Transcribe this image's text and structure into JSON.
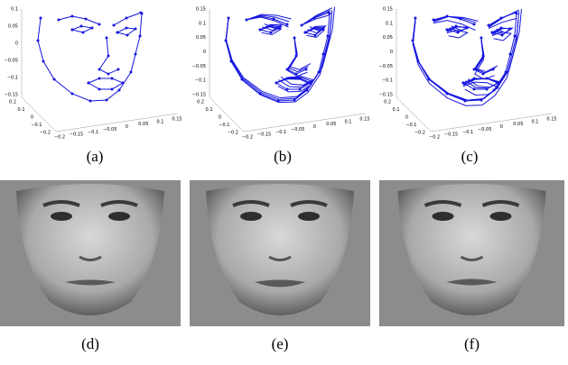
{
  "panels": [
    {
      "label": "(a)",
      "z_ticks": [
        "0.1",
        "0.05",
        "0",
        "−0.05",
        "−0.1",
        "−0.15"
      ],
      "y_ticks": [
        "0.2",
        "0.1",
        "0",
        "−0.1",
        "−0.2"
      ],
      "x_ticks": [
        "−0.2",
        "−0.15",
        "−0.1",
        "−0.05",
        "0",
        "0.05",
        "0.1",
        "0.15"
      ]
    },
    {
      "label": "(b)",
      "z_ticks": [
        "0.15",
        "0.1",
        "0.05",
        "0",
        "−0.05",
        "−0.1",
        "−0.15"
      ],
      "y_ticks": [
        "0.2",
        "0.1",
        "0",
        "−0.1",
        "−0.2"
      ],
      "x_ticks": [
        "−0.2",
        "−0.15",
        "−0.1",
        "−0.05",
        "0",
        "0.05",
        "0.1",
        "0.15"
      ]
    },
    {
      "label": "(c)",
      "z_ticks": [
        "0.15",
        "0.1",
        "0.05",
        "0",
        "−0.05",
        "−0.1",
        "−0.15"
      ],
      "y_ticks": [
        "0.2",
        "0.1",
        "0",
        "−0.1",
        "−0.2"
      ],
      "x_ticks": [
        "−0.2",
        "−0.15",
        "−0.1",
        "−0.05",
        "0",
        "0.05",
        "0.1",
        "0.15"
      ]
    }
  ],
  "faces": [
    {
      "label": "(d)"
    },
    {
      "label": "(e)"
    },
    {
      "label": "(f)"
    }
  ]
}
